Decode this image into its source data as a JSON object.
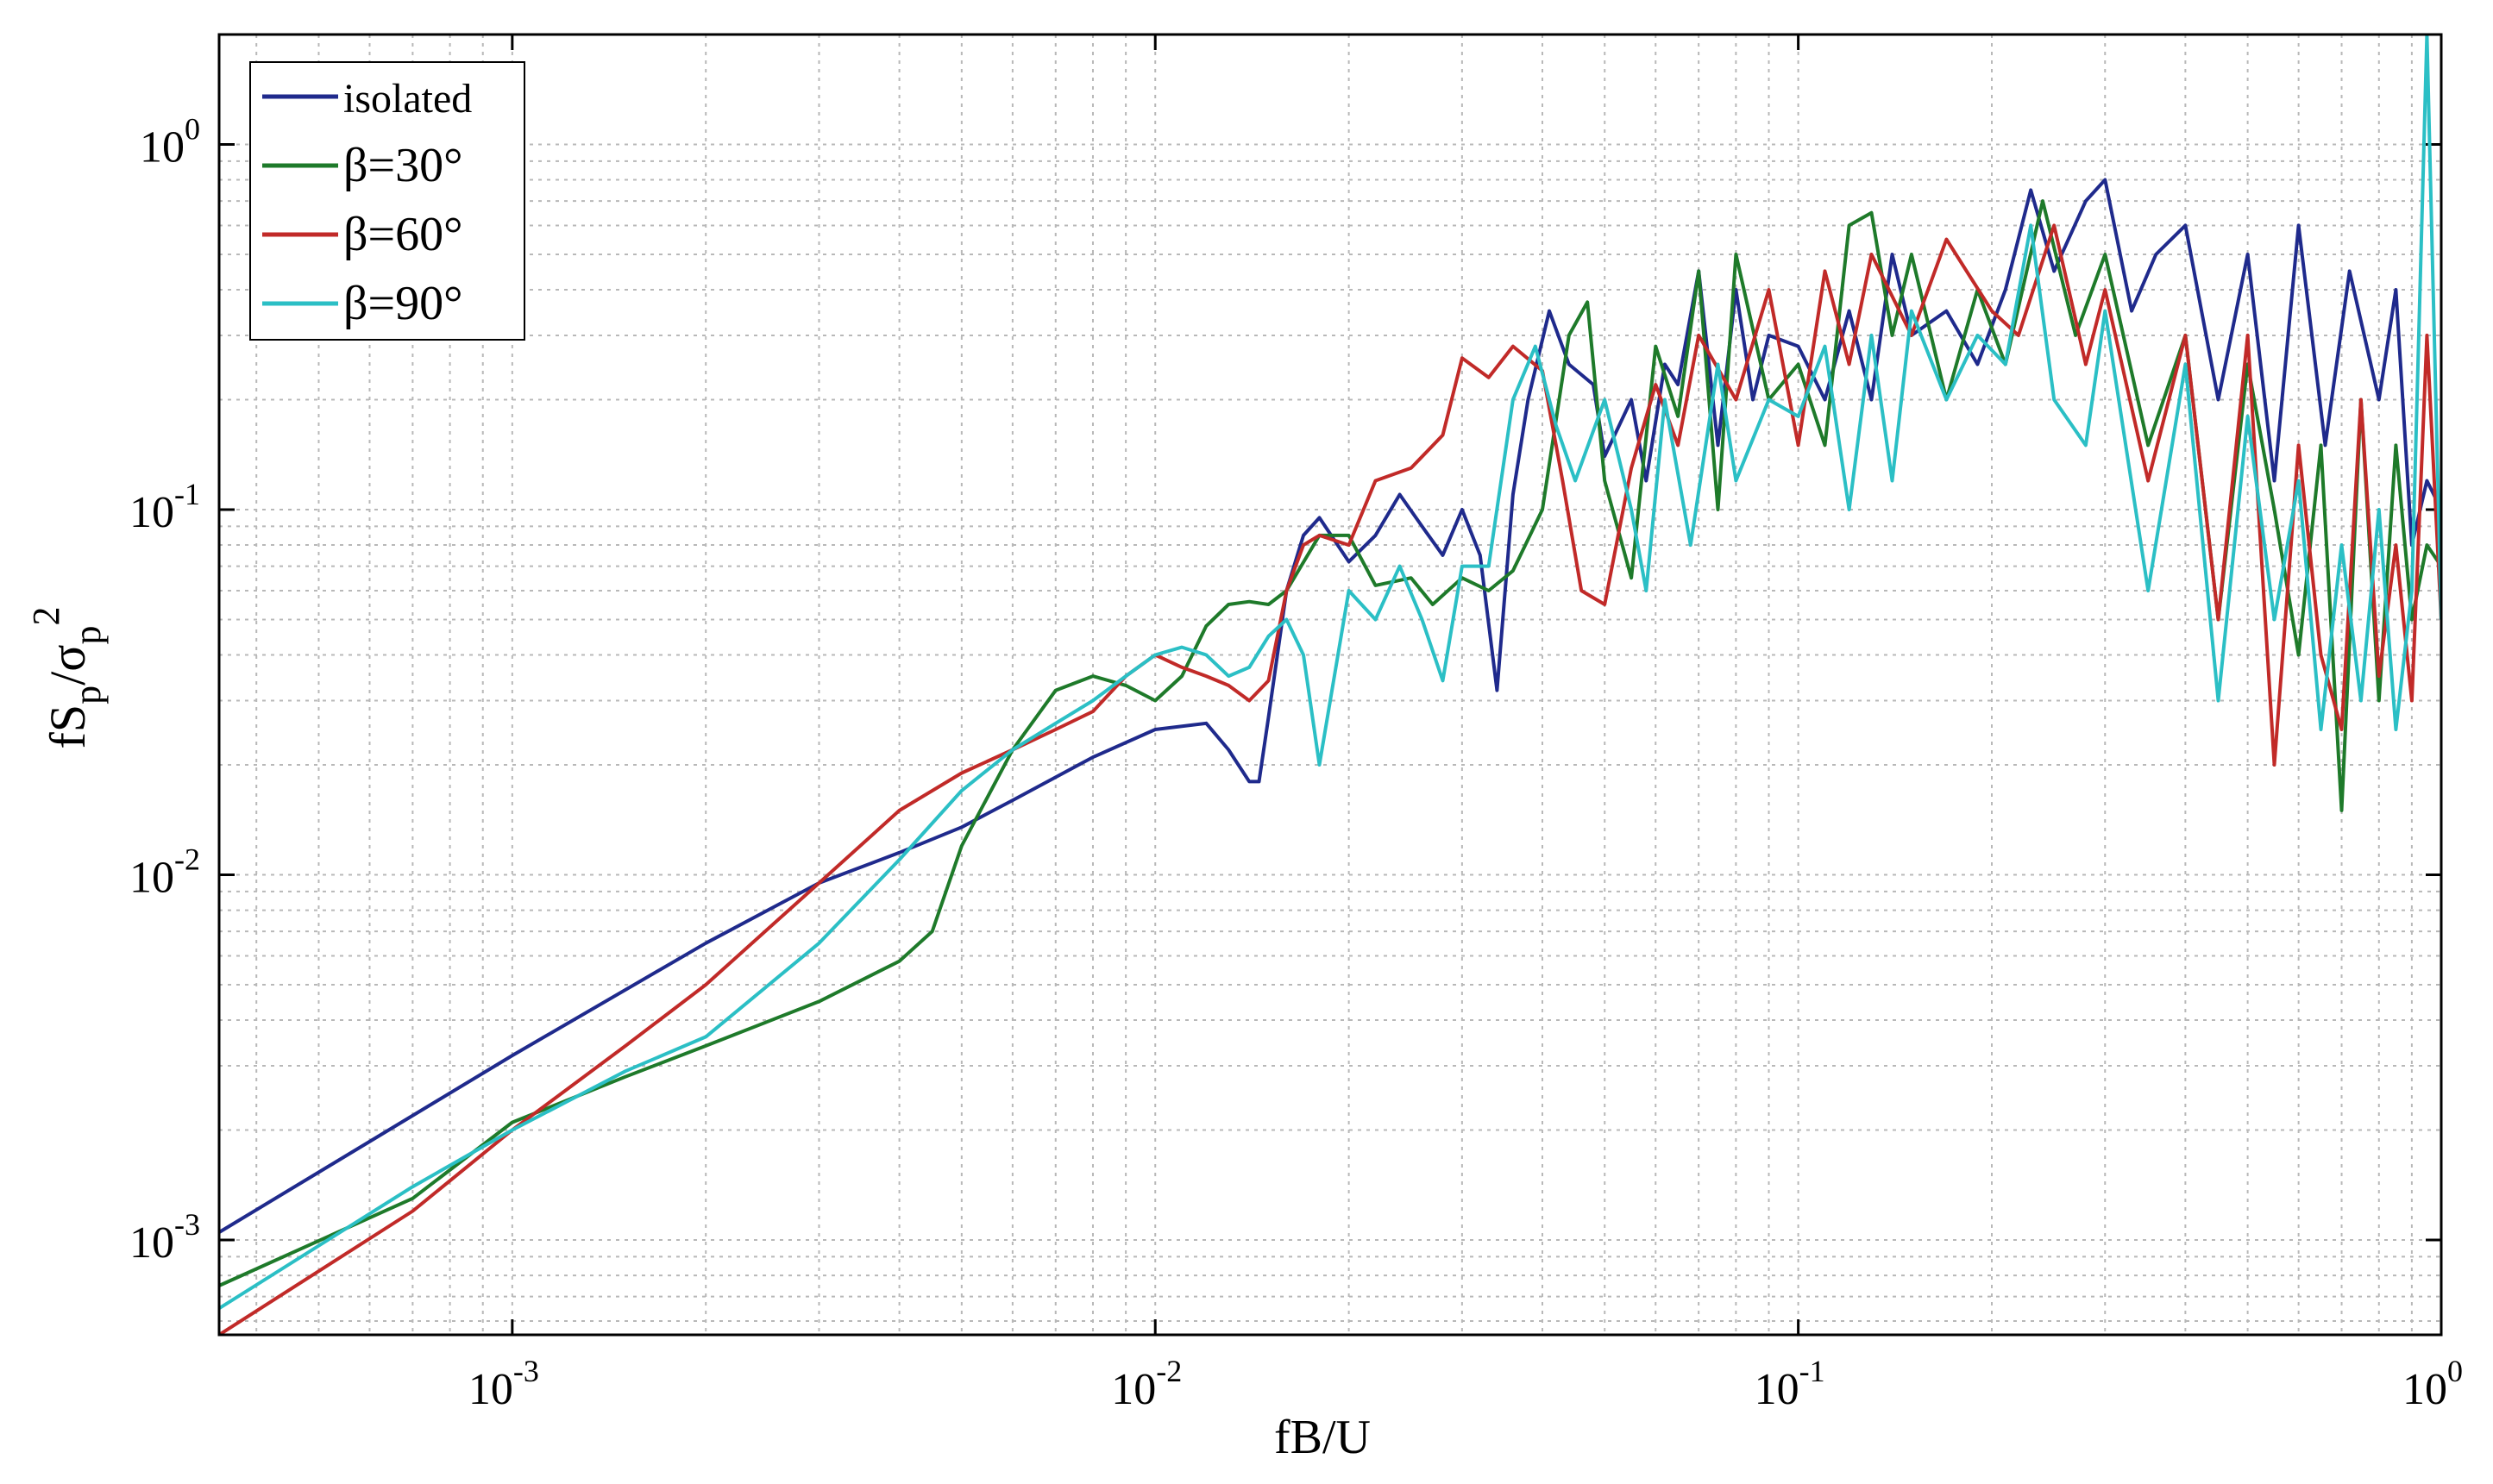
{
  "chart_data": {
    "type": "line",
    "xlabel": "fB/U",
    "ylabel": {
      "base": "fS",
      "sub1": "p",
      "slash": "/σ",
      "sub2": "p",
      "sup": "2"
    },
    "xscale": "log",
    "yscale": "log",
    "xlim": [
      0.00035,
      1.0
    ],
    "ylim": [
      0.00055,
      2.0
    ],
    "grid": true,
    "legend_position": "top-left",
    "x_ticks": [
      {
        "value": 0.001,
        "base": "10",
        "exp": "-3"
      },
      {
        "value": 0.01,
        "base": "10",
        "exp": "-2"
      },
      {
        "value": 0.1,
        "base": "10",
        "exp": "-1"
      },
      {
        "value": 1.0,
        "base": "10",
        "exp": "0"
      }
    ],
    "y_ticks": [
      {
        "value": 0.001,
        "base": "10",
        "exp": "-3"
      },
      {
        "value": 0.01,
        "base": "10",
        "exp": "-2"
      },
      {
        "value": 0.1,
        "base": "10",
        "exp": "-1"
      },
      {
        "value": 1.0,
        "base": "10",
        "exp": "0"
      }
    ],
    "series": [
      {
        "name": "isolated",
        "color": "#1f2a8c",
        "x": [
          0.00035,
          0.001,
          0.002,
          0.003,
          0.004,
          0.005,
          0.006,
          0.008,
          0.01,
          0.012,
          0.013,
          0.014,
          0.0145,
          0.015,
          0.016,
          0.017,
          0.018,
          0.02,
          0.022,
          0.024,
          0.026,
          0.028,
          0.03,
          0.032,
          0.034,
          0.036,
          0.038,
          0.041,
          0.044,
          0.048,
          0.05,
          0.055,
          0.058,
          0.062,
          0.065,
          0.07,
          0.075,
          0.08,
          0.085,
          0.09,
          0.1,
          0.11,
          0.12,
          0.13,
          0.14,
          0.15,
          0.17,
          0.19,
          0.21,
          0.23,
          0.25,
          0.28,
          0.3,
          0.33,
          0.36,
          0.4,
          0.45,
          0.5,
          0.55,
          0.6,
          0.66,
          0.72,
          0.8,
          0.85,
          0.9,
          0.95,
          1.0
        ],
        "y": [
          0.00105,
          0.0032,
          0.0065,
          0.0095,
          0.0115,
          0.0135,
          0.016,
          0.021,
          0.025,
          0.026,
          0.022,
          0.018,
          0.018,
          0.027,
          0.06,
          0.085,
          0.095,
          0.072,
          0.085,
          0.11,
          0.09,
          0.075,
          0.1,
          0.075,
          0.032,
          0.11,
          0.2,
          0.35,
          0.25,
          0.22,
          0.14,
          0.2,
          0.12,
          0.25,
          0.22,
          0.45,
          0.15,
          0.4,
          0.2,
          0.3,
          0.28,
          0.2,
          0.35,
          0.2,
          0.5,
          0.3,
          0.35,
          0.25,
          0.4,
          0.75,
          0.45,
          0.7,
          0.8,
          0.35,
          0.5,
          0.6,
          0.2,
          0.5,
          0.12,
          0.6,
          0.15,
          0.45,
          0.2,
          0.4,
          0.08,
          0.12,
          0.1
        ]
      },
      {
        "name": "β=30°",
        "color": "#1e7a2a",
        "x": [
          0.00035,
          0.0007,
          0.001,
          0.0015,
          0.002,
          0.003,
          0.004,
          0.0045,
          0.005,
          0.006,
          0.007,
          0.008,
          0.009,
          0.01,
          0.011,
          0.012,
          0.013,
          0.014,
          0.015,
          0.016,
          0.018,
          0.02,
          0.022,
          0.025,
          0.027,
          0.03,
          0.033,
          0.036,
          0.04,
          0.044,
          0.047,
          0.05,
          0.055,
          0.06,
          0.065,
          0.07,
          0.075,
          0.08,
          0.09,
          0.1,
          0.11,
          0.12,
          0.13,
          0.14,
          0.15,
          0.17,
          0.19,
          0.21,
          0.24,
          0.27,
          0.3,
          0.35,
          0.4,
          0.45,
          0.5,
          0.55,
          0.6,
          0.65,
          0.7,
          0.75,
          0.8,
          0.85,
          0.9,
          0.95,
          1.0
        ],
        "y": [
          0.00075,
          0.0013,
          0.0021,
          0.0028,
          0.0034,
          0.0045,
          0.0058,
          0.007,
          0.012,
          0.022,
          0.032,
          0.035,
          0.033,
          0.03,
          0.035,
          0.048,
          0.055,
          0.056,
          0.055,
          0.06,
          0.085,
          0.085,
          0.062,
          0.065,
          0.055,
          0.065,
          0.06,
          0.068,
          0.1,
          0.3,
          0.37,
          0.12,
          0.065,
          0.28,
          0.18,
          0.45,
          0.1,
          0.5,
          0.2,
          0.25,
          0.15,
          0.6,
          0.65,
          0.3,
          0.5,
          0.2,
          0.4,
          0.25,
          0.7,
          0.3,
          0.5,
          0.15,
          0.3,
          0.05,
          0.25,
          0.1,
          0.04,
          0.15,
          0.015,
          0.2,
          0.03,
          0.15,
          0.05,
          0.08,
          0.07
        ]
      },
      {
        "name": "β=60°",
        "color": "#c12a28",
        "x": [
          0.00035,
          0.0007,
          0.001,
          0.0015,
          0.002,
          0.003,
          0.004,
          0.005,
          0.006,
          0.007,
          0.008,
          0.009,
          0.01,
          0.011,
          0.012,
          0.013,
          0.014,
          0.015,
          0.016,
          0.017,
          0.018,
          0.02,
          0.022,
          0.025,
          0.028,
          0.03,
          0.033,
          0.036,
          0.04,
          0.043,
          0.046,
          0.05,
          0.055,
          0.06,
          0.065,
          0.07,
          0.08,
          0.09,
          0.1,
          0.11,
          0.12,
          0.13,
          0.15,
          0.17,
          0.2,
          0.22,
          0.25,
          0.28,
          0.3,
          0.35,
          0.4,
          0.45,
          0.5,
          0.55,
          0.6,
          0.65,
          0.7,
          0.75,
          0.8,
          0.85,
          0.9,
          0.95,
          1.0
        ],
        "y": [
          0.00055,
          0.0012,
          0.002,
          0.0034,
          0.005,
          0.0095,
          0.015,
          0.019,
          0.022,
          0.025,
          0.028,
          0.035,
          0.04,
          0.037,
          0.035,
          0.033,
          0.03,
          0.034,
          0.06,
          0.08,
          0.085,
          0.08,
          0.12,
          0.13,
          0.16,
          0.26,
          0.23,
          0.28,
          0.24,
          0.12,
          0.06,
          0.055,
          0.13,
          0.22,
          0.15,
          0.3,
          0.2,
          0.4,
          0.15,
          0.45,
          0.25,
          0.5,
          0.3,
          0.55,
          0.35,
          0.3,
          0.6,
          0.25,
          0.4,
          0.12,
          0.3,
          0.05,
          0.3,
          0.02,
          0.15,
          0.04,
          0.025,
          0.2,
          0.035,
          0.08,
          0.03,
          0.3,
          0.05
        ]
      },
      {
        "name": "β=90°",
        "color": "#2bbfc5",
        "x": [
          0.00035,
          0.0007,
          0.001,
          0.0015,
          0.002,
          0.003,
          0.004,
          0.005,
          0.006,
          0.007,
          0.008,
          0.009,
          0.01,
          0.011,
          0.012,
          0.013,
          0.014,
          0.015,
          0.016,
          0.017,
          0.018,
          0.02,
          0.022,
          0.024,
          0.026,
          0.028,
          0.03,
          0.033,
          0.036,
          0.039,
          0.042,
          0.045,
          0.05,
          0.055,
          0.058,
          0.062,
          0.068,
          0.075,
          0.08,
          0.09,
          0.1,
          0.11,
          0.12,
          0.13,
          0.14,
          0.15,
          0.17,
          0.19,
          0.21,
          0.23,
          0.25,
          0.28,
          0.3,
          0.35,
          0.4,
          0.45,
          0.5,
          0.55,
          0.6,
          0.65,
          0.7,
          0.75,
          0.8,
          0.85,
          0.9,
          0.95,
          1.0
        ],
        "y": [
          0.00065,
          0.0014,
          0.002,
          0.0029,
          0.0036,
          0.0065,
          0.011,
          0.017,
          0.022,
          0.026,
          0.03,
          0.035,
          0.04,
          0.042,
          0.04,
          0.035,
          0.037,
          0.045,
          0.05,
          0.04,
          0.02,
          0.06,
          0.05,
          0.07,
          0.05,
          0.034,
          0.07,
          0.07,
          0.2,
          0.28,
          0.17,
          0.12,
          0.2,
          0.1,
          0.06,
          0.2,
          0.08,
          0.25,
          0.12,
          0.2,
          0.18,
          0.28,
          0.1,
          0.3,
          0.12,
          0.35,
          0.2,
          0.3,
          0.25,
          0.6,
          0.2,
          0.15,
          0.35,
          0.06,
          0.25,
          0.03,
          0.18,
          0.05,
          0.12,
          0.025,
          0.08,
          0.03,
          0.1,
          0.025,
          0.06,
          2.0,
          0.05
        ]
      }
    ]
  }
}
